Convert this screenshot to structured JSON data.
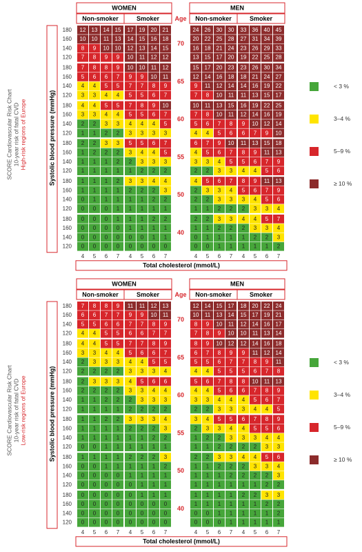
{
  "chart_data": [
    {
      "type": "heatmap",
      "title": [
        "SCORE Cardiovascular Risk Chart",
        "10-year risk of fatal CVD",
        "High-risk regions of Europe"
      ],
      "ylabel": "Systolic blood pressure (mmHg)",
      "xlabel": "Total cholesterol (mmol/L)",
      "age_label": "Age",
      "groups": [
        {
          "name": "WOMEN",
          "subgroups": [
            "Non-smoker",
            "Smoker"
          ]
        },
        {
          "name": "MEN",
          "subgroups": [
            "Non-smoker",
            "Smoker"
          ]
        }
      ],
      "cholesterol": [
        4,
        5,
        6,
        7
      ],
      "bp": [
        180,
        160,
        140,
        120
      ],
      "legend": [
        {
          "label": "< 3 %",
          "color": "#46a63a",
          "min": 0
        },
        {
          "label": "3–4 %",
          "color": "#ffe400",
          "min": 3
        },
        {
          "label": "5–9 %",
          "color": "#d7262b",
          "min": 5
        },
        {
          "label": "≥ 10 %",
          "color": "#8c2b2b",
          "min": 10
        }
      ],
      "age_groups": [
        {
          "age": 70,
          "values": [
            [
              12,
              13,
              14,
              15,
              17,
              19,
              20,
              21,
              24,
              26,
              30,
              30,
              33,
              36,
              40,
              45
            ],
            [
              10,
              10,
              11,
              13,
              14,
              15,
              16,
              18,
              20,
              22,
              25,
              28,
              27,
              31,
              34,
              39
            ],
            [
              8,
              9,
              10,
              10,
              12,
              13,
              14,
              15,
              16,
              18,
              21,
              24,
              23,
              26,
              29,
              33
            ],
            [
              7,
              8,
              9,
              9,
              10,
              11,
              12,
              12,
              13,
              15,
              17,
              20,
              19,
              22,
              25,
              28
            ]
          ]
        },
        {
          "age": 65,
          "values": [
            [
              7,
              8,
              8,
              9,
              10,
              10,
              11,
              12,
              15,
              17,
              20,
              23,
              23,
              26,
              30,
              34
            ],
            [
              5,
              6,
              6,
              7,
              9,
              9,
              10,
              11,
              12,
              14,
              16,
              18,
              18,
              21,
              24,
              27
            ],
            [
              4,
              4,
              5,
              5,
              7,
              7,
              8,
              9,
              9,
              11,
              12,
              14,
              14,
              16,
              19,
              22
            ],
            [
              3,
              3,
              4,
              4,
              5,
              5,
              6,
              7,
              7,
              8,
              10,
              11,
              11,
              13,
              15,
              17
            ]
          ]
        },
        {
          "age": 60,
          "values": [
            [
              4,
              4,
              5,
              5,
              7,
              8,
              9,
              10,
              10,
              11,
              13,
              15,
              16,
              19,
              22,
              25
            ],
            [
              3,
              3,
              4,
              4,
              5,
              5,
              6,
              7,
              7,
              8,
              10,
              11,
              12,
              14,
              16,
              19
            ],
            [
              2,
              2,
              3,
              3,
              4,
              4,
              4,
              5,
              5,
              6,
              7,
              8,
              9,
              10,
              12,
              14
            ],
            [
              1,
              1,
              2,
              2,
              3,
              3,
              3,
              3,
              4,
              4,
              5,
              6,
              6,
              7,
              9,
              10
            ]
          ]
        },
        {
          "age": 55,
          "values": [
            [
              2,
              2,
              3,
              3,
              5,
              5,
              6,
              7,
              6,
              7,
              9,
              10,
              11,
              13,
              15,
              18
            ],
            [
              1,
              2,
              2,
              2,
              3,
              4,
              4,
              5,
              4,
              5,
              6,
              7,
              8,
              9,
              11,
              13
            ],
            [
              1,
              1,
              1,
              2,
              2,
              3,
              3,
              3,
              3,
              3,
              4,
              5,
              5,
              6,
              7,
              9
            ],
            [
              1,
              1,
              1,
              1,
              1,
              2,
              2,
              2,
              2,
              2,
              3,
              3,
              4,
              4,
              5,
              6
            ]
          ]
        },
        {
          "age": 50,
          "values": [
            [
              1,
              1,
              1,
              2,
              3,
              3,
              4,
              4,
              4,
              5,
              6,
              7,
              8,
              9,
              11,
              13
            ],
            [
              1,
              1,
              1,
              1,
              2,
              2,
              2,
              3,
              2,
              3,
              3,
              4,
              5,
              6,
              7,
              9
            ],
            [
              0,
              1,
              1,
              1,
              1,
              1,
              2,
              2,
              2,
              2,
              3,
              3,
              3,
              4,
              5,
              6
            ],
            [
              0,
              0,
              0,
              1,
              1,
              1,
              1,
              1,
              1,
              1,
              2,
              2,
              2,
              3,
              3,
              4
            ]
          ]
        },
        {
          "age": 40,
          "values": [
            [
              0,
              0,
              0,
              1,
              1,
              1,
              2,
              2,
              2,
              2,
              3,
              3,
              4,
              4,
              5,
              7
            ],
            [
              0,
              0,
              0,
              0,
              1,
              1,
              1,
              1,
              1,
              1,
              2,
              2,
              2,
              3,
              3,
              4
            ],
            [
              0,
              0,
              0,
              0,
              0,
              0,
              1,
              1,
              0,
              1,
              1,
              1,
              1,
              2,
              2,
              3
            ],
            [
              0,
              0,
              0,
              0,
              0,
              0,
              0,
              0,
              0,
              0,
              1,
              1,
              1,
              1,
              1,
              2
            ]
          ]
        }
      ]
    },
    {
      "type": "heatmap",
      "title": [
        "SCORE Cardiovascular Risk Chart",
        "10-year risk of fatal CVD",
        "Low-risk regions of Europe"
      ],
      "ylabel": "Systolic blood pressure (mmHg)",
      "xlabel": "Total cholesterol (mmol/L)",
      "age_label": "Age",
      "groups": [
        {
          "name": "WOMEN",
          "subgroups": [
            "Non-smoker",
            "Smoker"
          ]
        },
        {
          "name": "MEN",
          "subgroups": [
            "Non-smoker",
            "Smoker"
          ]
        }
      ],
      "cholesterol": [
        4,
        5,
        6,
        7
      ],
      "bp": [
        180,
        160,
        140,
        120
      ],
      "legend": [
        {
          "label": "< 3 %",
          "color": "#46a63a",
          "min": 0
        },
        {
          "label": "3–4 %",
          "color": "#ffe400",
          "min": 3
        },
        {
          "label": "5–9 %",
          "color": "#d7262b",
          "min": 5
        },
        {
          "label": "≥ 10 %",
          "color": "#8c2b2b",
          "min": 10
        }
      ],
      "age_groups": [
        {
          "age": 70,
          "values": [
            [
              7,
              8,
              8,
              9,
              11,
              11,
              12,
              13,
              12,
              14,
              15,
              17,
              18,
              20,
              22,
              24
            ],
            [
              6,
              6,
              7,
              7,
              9,
              9,
              10,
              11,
              10,
              11,
              13,
              14,
              15,
              17,
              19,
              21
            ],
            [
              5,
              5,
              6,
              6,
              7,
              7,
              8,
              9,
              8,
              9,
              10,
              11,
              12,
              14,
              16,
              17
            ],
            [
              4,
              4,
              5,
              5,
              6,
              6,
              7,
              7,
              7,
              8,
              9,
              10,
              10,
              11,
              13,
              14
            ]
          ]
        },
        {
          "age": 65,
          "values": [
            [
              4,
              4,
              5,
              5,
              7,
              7,
              8,
              9,
              8,
              9,
              10,
              12,
              12,
              14,
              16,
              18
            ],
            [
              3,
              3,
              4,
              4,
              5,
              6,
              6,
              7,
              6,
              7,
              8,
              9,
              9,
              11,
              12,
              14
            ],
            [
              2,
              3,
              3,
              3,
              4,
              4,
              5,
              5,
              5,
              5,
              6,
              7,
              7,
              8,
              9,
              11
            ],
            [
              2,
              2,
              2,
              2,
              3,
              3,
              3,
              4,
              4,
              4,
              5,
              5,
              5,
              6,
              7,
              8
            ]
          ]
        },
        {
          "age": 60,
          "values": [
            [
              2,
              3,
              3,
              3,
              4,
              5,
              6,
              6,
              5,
              6,
              7,
              8,
              8,
              10,
              11,
              13
            ],
            [
              2,
              2,
              2,
              2,
              3,
              3,
              4,
              4,
              4,
              4,
              5,
              6,
              6,
              7,
              8,
              9
            ],
            [
              1,
              1,
              2,
              2,
              2,
              3,
              3,
              3,
              3,
              3,
              4,
              4,
              4,
              5,
              6,
              7
            ],
            [
              1,
              1,
              1,
              1,
              2,
              2,
              2,
              2,
              2,
              2,
              3,
              3,
              3,
              4,
              4,
              5
            ]
          ]
        },
        {
          "age": 55,
          "values": [
            [
              1,
              1,
              2,
              2,
              3,
              3,
              3,
              4,
              3,
              4,
              5,
              5,
              6,
              7,
              8,
              9
            ],
            [
              1,
              1,
              1,
              1,
              2,
              2,
              2,
              3,
              2,
              3,
              3,
              4,
              4,
              5,
              5,
              6
            ],
            [
              1,
              1,
              1,
              1,
              1,
              1,
              2,
              2,
              1,
              2,
              2,
              3,
              3,
              3,
              4,
              4
            ],
            [
              0,
              0,
              1,
              1,
              1,
              1,
              1,
              1,
              1,
              1,
              2,
              2,
              2,
              2,
              3,
              3
            ]
          ]
        },
        {
          "age": 50,
          "values": [
            [
              1,
              1,
              1,
              1,
              2,
              2,
              2,
              3,
              2,
              2,
              3,
              3,
              4,
              4,
              5,
              6
            ],
            [
              0,
              0,
              1,
              1,
              1,
              1,
              1,
              2,
              1,
              1,
              2,
              2,
              2,
              3,
              3,
              4
            ],
            [
              0,
              0,
              0,
              0,
              1,
              1,
              1,
              1,
              1,
              1,
              1,
              2,
              2,
              2,
              2,
              3
            ],
            [
              0,
              0,
              0,
              0,
              0,
              1,
              1,
              1,
              1,
              1,
              1,
              1,
              1,
              1,
              2,
              2
            ]
          ]
        },
        {
          "age": 40,
          "values": [
            [
              0,
              0,
              0,
              0,
              0,
              1,
              1,
              1,
              1,
              1,
              1,
              1,
              2,
              2,
              3,
              3
            ],
            [
              0,
              0,
              0,
              0,
              0,
              0,
              0,
              0,
              1,
              1,
              1,
              1,
              1,
              1,
              2,
              2
            ],
            [
              0,
              0,
              0,
              0,
              0,
              0,
              0,
              0,
              0,
              0,
              1,
              1,
              1,
              1,
              1,
              2
            ],
            [
              0,
              0,
              0,
              0,
              0,
              0,
              0,
              0,
              0,
              0,
              0,
              1,
              1,
              1,
              1,
              1
            ]
          ]
        }
      ]
    }
  ]
}
